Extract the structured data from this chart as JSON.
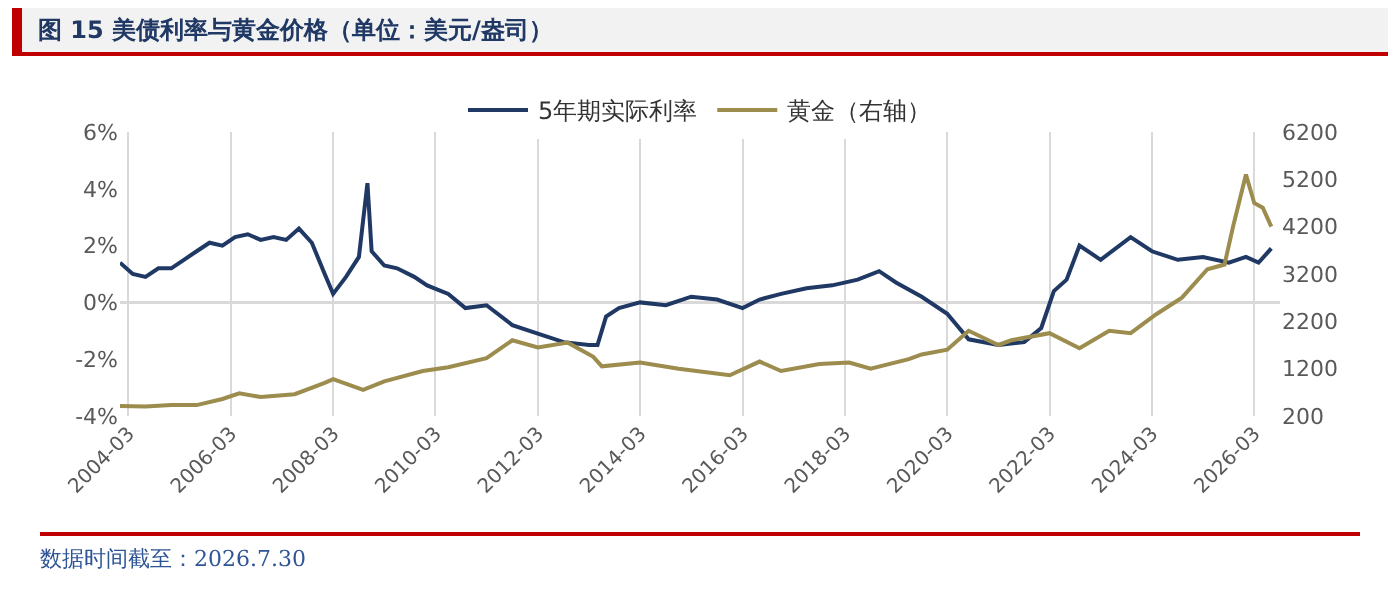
{
  "chart_data": {
    "type": "line",
    "title": "图 15 美债利率与黄金价格（单位：美元/盎司）",
    "annotations": [
      "数据时间截至：2026.7.30"
    ],
    "series": [
      {
        "name": "5年期实际利率",
        "color": "#1f3864",
        "x": [
          "2004-01",
          "2004-04",
          "2004-07",
          "2004-10",
          "2005-01",
          "2005-04",
          "2005-07",
          "2005-10",
          "2006-01",
          "2006-04",
          "2006-07",
          "2006-10",
          "2007-01",
          "2007-04",
          "2007-07",
          "2007-10",
          "2008-01",
          "2008-03",
          "2008-06",
          "2008-09",
          "2008-11",
          "2008-12",
          "2009-03",
          "2009-06",
          "2009-10",
          "2010-01",
          "2010-06",
          "2010-10",
          "2011-03",
          "2011-09",
          "2012-03",
          "2012-09",
          "2013-03",
          "2013-05",
          "2013-07",
          "2013-10",
          "2014-03",
          "2014-09",
          "2015-03",
          "2015-09",
          "2016-03",
          "2016-07",
          "2016-12",
          "2017-06",
          "2017-12",
          "2018-06",
          "2018-11",
          "2019-03",
          "2019-09",
          "2020-03",
          "2020-08",
          "2021-03",
          "2021-09",
          "2022-01",
          "2022-04",
          "2022-07",
          "2022-10",
          "2023-03",
          "2023-10",
          "2024-03",
          "2024-09",
          "2025-03",
          "2025-09",
          "2026-01",
          "2026-04",
          "2026-07"
        ],
        "values": [
          1.4,
          1.0,
          0.9,
          1.2,
          1.2,
          1.5,
          1.8,
          2.1,
          2.0,
          2.3,
          2.4,
          2.2,
          2.3,
          2.2,
          2.6,
          2.1,
          1.0,
          0.3,
          0.9,
          1.6,
          4.2,
          1.8,
          1.3,
          1.2,
          0.9,
          0.6,
          0.3,
          -0.2,
          -0.1,
          -0.8,
          -1.1,
          -1.4,
          -1.5,
          -1.5,
          -0.5,
          -0.2,
          0.0,
          -0.1,
          0.2,
          0.1,
          -0.2,
          0.1,
          0.3,
          0.5,
          0.6,
          0.8,
          1.1,
          0.7,
          0.2,
          -0.4,
          -1.3,
          -1.5,
          -1.4,
          -0.9,
          0.4,
          0.8,
          2.0,
          1.5,
          2.3,
          1.8,
          1.5,
          1.6,
          1.4,
          1.6,
          1.4,
          1.9
        ]
      },
      {
        "name": "黄金（右轴）",
        "color": "#9c8c4e",
        "axis": "y2",
        "x": [
          "2004-01",
          "2004-07",
          "2005-01",
          "2005-07",
          "2006-01",
          "2006-05",
          "2006-10",
          "2007-06",
          "2008-01",
          "2008-03",
          "2008-10",
          "2009-03",
          "2009-12",
          "2010-06",
          "2011-03",
          "2011-09",
          "2012-03",
          "2012-10",
          "2013-04",
          "2013-06",
          "2014-03",
          "2014-12",
          "2015-12",
          "2016-07",
          "2016-12",
          "2017-09",
          "2018-04",
          "2018-09",
          "2019-06",
          "2019-09",
          "2020-03",
          "2020-08",
          "2021-03",
          "2021-06",
          "2022-03",
          "2022-10",
          "2023-05",
          "2023-10",
          "2024-04",
          "2024-10",
          "2025-04",
          "2025-08",
          "2025-10",
          "2026-01",
          "2026-03",
          "2026-05",
          "2026-07"
        ],
        "values": [
          410,
          400,
          430,
          430,
          560,
          680,
          600,
          660,
          900,
          980,
          750,
          930,
          1150,
          1230,
          1420,
          1800,
          1650,
          1750,
          1450,
          1250,
          1330,
          1200,
          1060,
          1350,
          1150,
          1300,
          1330,
          1200,
          1400,
          1500,
          1600,
          2000,
          1700,
          1800,
          1950,
          1630,
          2000,
          1950,
          2350,
          2700,
          3300,
          3400,
          4200,
          5300,
          4700,
          4600,
          4200
        ]
      }
    ],
    "xlim": [
      "2004-01",
      "2026-09"
    ],
    "xticks": [
      "2004-03",
      "2006-03",
      "2008-03",
      "2010-03",
      "2012-03",
      "2014-03",
      "2016-03",
      "2018-03",
      "2020-03",
      "2022-03",
      "2024-03",
      "2026-03"
    ],
    "ylim": [
      -4,
      6
    ],
    "yticks": [
      {
        "value": -4,
        "label": "-4%"
      },
      {
        "value": -2,
        "label": "-2%"
      },
      {
        "value": 0,
        "label": "0%"
      },
      {
        "value": 2,
        "label": "2%"
      },
      {
        "value": 4,
        "label": "4%"
      },
      {
        "value": 6,
        "label": "6%"
      }
    ],
    "y2lim": [
      200,
      6200
    ],
    "y2ticks": [
      200,
      1200,
      2200,
      3200,
      4200,
      5200,
      6200
    ],
    "ref_lines": [
      {
        "axis": "y",
        "value": 0,
        "color": "#d9d9d9"
      }
    ],
    "grid": "x",
    "legend": "top",
    "line_style": "solid",
    "marker": "none"
  }
}
